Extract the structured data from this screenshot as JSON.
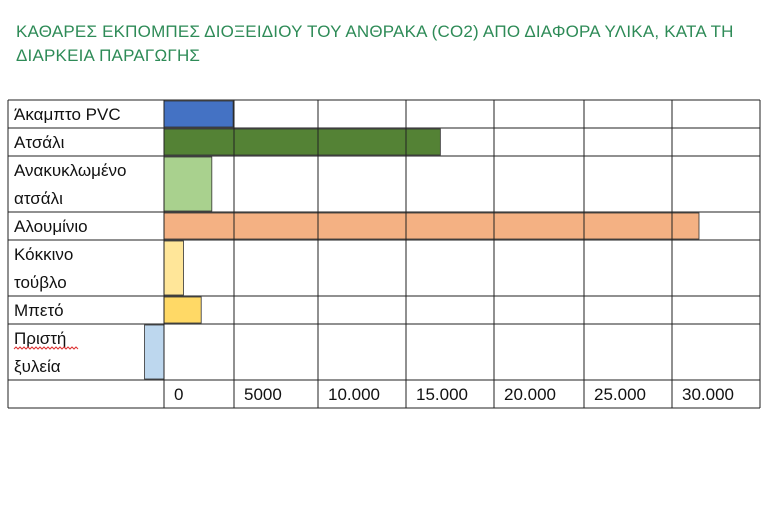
{
  "title": "ΚΑΘΑΡΕΣ ΕΚΠΟΜΠΕΣ ΔΙΟΞΕΙΔΙΟΥ ΤΟΥ ΑΝΘΡΑΚΑ (CO2) ΑΠΟ ΔΙΑΦΟΡΑ ΥΛΙΚΑ, ΚΑΤΑ ΤΗ ΔΙΑΡΚΕΙΑ ΠΑΡΑΓΩΓΗΣ",
  "colors": {
    "title": "#2e8b57"
  },
  "chart_data": {
    "type": "bar",
    "orientation": "horizontal",
    "title": "ΚΑΘΑΡΕΣ ΕΚΠΟΜΠΕΣ ΔΙΟΞΕΙΔΙΟΥ ΤΟΥ ΑΝΘΡΑΚΑ (CO2) ΑΠΟ ΔΙΑΦΟΡΑ ΥΛΙΚΑ, ΚΑΤΑ ΤΗ ΔΙΑΡΚΕΙΑ ΠΑΡΑΓΩΓΗΣ",
    "xlabel": "",
    "ylabel": "",
    "grid": true,
    "xlim": [
      -1000,
      34000
    ],
    "x_ticks": [
      0,
      5000,
      10000,
      15000,
      20000,
      25000,
      30000
    ],
    "x_tick_labels": [
      "0",
      "5000",
      "10.000",
      "15.000",
      "20.000",
      "25.000",
      "30.000"
    ],
    "categories": [
      [
        "Άκαμπτο PVC"
      ],
      [
        "Ατσάλι"
      ],
      [
        "Ανακυκλωμένο",
        "ατσάλι"
      ],
      [
        "Αλουμίνιο"
      ],
      [
        "Κόκκινο",
        "τούβλο"
      ],
      [
        "Μπετό"
      ],
      [
        "Πριστή",
        "ξυλεία"
      ]
    ],
    "values": [
      3900,
      15600,
      2700,
      30200,
      1100,
      2100,
      -1100
    ],
    "bar_colors": [
      "#4472c4",
      "#548235",
      "#a9d18e",
      "#f4b183",
      "#ffe699",
      "#ffd966",
      "#bdd7ee"
    ]
  }
}
